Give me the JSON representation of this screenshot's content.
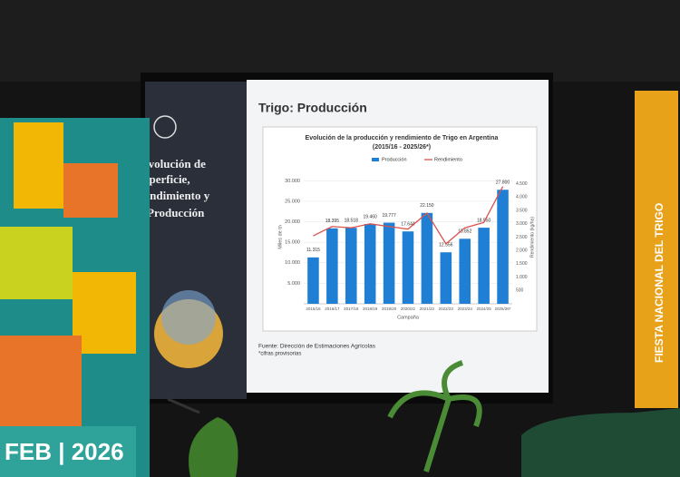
{
  "slide": {
    "title": "Trigo: Producción",
    "side_title": [
      "Evolución de",
      "Superficie,",
      "Rendimiento y",
      "Producción"
    ],
    "source": "Fuente: Dirección de Estimaciones Agrícolas",
    "note": "*cifras provisorias"
  },
  "banner": {
    "date": "FEB | 2026",
    "event": "FIESTA NACIONAL DEL TRIGO"
  },
  "chart_data": {
    "type": "bar-line",
    "title": [
      "Evolución de la producción y rendimiento de Trigo en Argentina",
      "(2015/16 - 2025/26*)"
    ],
    "x_label": "Campaña",
    "y_label": "Miles de tn",
    "y2_label": "Rendimiento (kg/ha)",
    "categories": [
      "2015/16",
      "2016/17",
      "2017/18",
      "2018/19",
      "2019/20",
      "2020/21",
      "2021/22",
      "2022/23",
      "2023/24",
      "2024/25",
      "2025/26*"
    ],
    "series": [
      {
        "name": "Producción",
        "color": "#1f7fd4",
        "values": [
          11315,
          18395,
          18518,
          19460,
          19777,
          17644,
          22150,
          12556,
          15852,
          18550,
          27800
        ],
        "value_labels": [
          "11.315",
          "18.395",
          "18.518",
          "19.460",
          "19.777",
          "17.644",
          "22.150",
          "12.556",
          "15.852",
          "18.550",
          "27.800"
        ]
      },
      {
        "name": "Rendimiento",
        "color": "#d9534f",
        "axis": "y2",
        "values": [
          2550,
          2900,
          2850,
          3000,
          2900,
          2800,
          3400,
          2250,
          2850,
          3050,
          4400
        ]
      }
    ],
    "ylim": [
      0,
      32500
    ],
    "yticks": [
      {
        "value": 5000,
        "label": "5.000"
      },
      {
        "value": 10000,
        "label": "10.000"
      },
      {
        "value": 15000,
        "label": "15.000"
      },
      {
        "value": 20000,
        "label": "20.000"
      },
      {
        "value": 25000,
        "label": "25.000"
      },
      {
        "value": 30000,
        "label": "30.000"
      }
    ],
    "y2lim": [
      0,
      5000
    ],
    "y2ticks": [
      500,
      {
        "value": 1000,
        "label": "1.000"
      },
      {
        "value": 1500,
        "label": "1.500"
      },
      {
        "value": 2000,
        "label": "2.000"
      },
      {
        "value": 2500,
        "label": "2.500"
      },
      {
        "value": 3000,
        "label": "3.000"
      },
      {
        "value": 3500,
        "label": "3.500"
      },
      {
        "value": 4000,
        "label": "4.000"
      },
      {
        "value": 4500,
        "label": "4.500"
      }
    ],
    "grid": true,
    "legend": "top"
  }
}
